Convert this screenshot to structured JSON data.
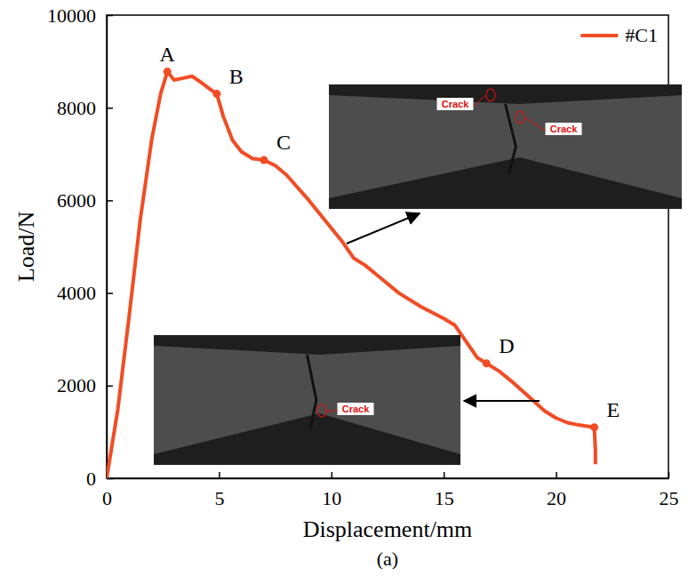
{
  "chart_data": {
    "type": "line",
    "title": "(a)",
    "x_label": "Displacement/mm",
    "y_label": "Load/N",
    "x": [
      0,
      0.5,
      1,
      1.5,
      2,
      2.4,
      2.7,
      3.0,
      3.5,
      3.8,
      4.2,
      4.6,
      4.9,
      5.2,
      5.6,
      6.0,
      6.5,
      7.0,
      7.5,
      8.0,
      9.0,
      10.0,
      10.5,
      11.0,
      11.5,
      12.0,
      13.0,
      14.0,
      15.0,
      15.5,
      16.0,
      16.5,
      16.9,
      17.5,
      18.0,
      18.7,
      19.5,
      20.0,
      20.5,
      21.0,
      21.7,
      21.75,
      21.75
    ],
    "series": [
      {
        "name": "#C1",
        "color": "#f24c24",
        "values": [
          0,
          1500,
          3500,
          5600,
          7300,
          8300,
          8780,
          8600,
          8650,
          8680,
          8550,
          8400,
          8300,
          7800,
          7300,
          7050,
          6900,
          6870,
          6750,
          6550,
          6000,
          5400,
          5100,
          4750,
          4600,
          4400,
          4000,
          3700,
          3450,
          3300,
          2950,
          2600,
          2480,
          2300,
          2100,
          1800,
          1450,
          1300,
          1200,
          1150,
          1100,
          600,
          300
        ]
      }
    ],
    "points": [
      {
        "label": "A",
        "x": 2.7,
        "y": 8780
      },
      {
        "label": "B",
        "x": 4.9,
        "y": 8300
      },
      {
        "label": "C",
        "x": 7.0,
        "y": 6870
      },
      {
        "label": "D",
        "x": 16.9,
        "y": 2480
      },
      {
        "label": "E",
        "x": 21.7,
        "y": 1100
      }
    ],
    "insets": [
      [
        "Crack",
        "Crack"
      ],
      [
        "Crack"
      ]
    ],
    "xlim": [
      0,
      25
    ],
    "xticks": [
      0,
      5,
      10,
      15,
      20,
      25
    ],
    "ylim": [
      0,
      10000
    ],
    "yticks": [
      0,
      2000,
      4000,
      6000,
      8000,
      10000
    ],
    "legend": "upper right",
    "grid": false
  }
}
